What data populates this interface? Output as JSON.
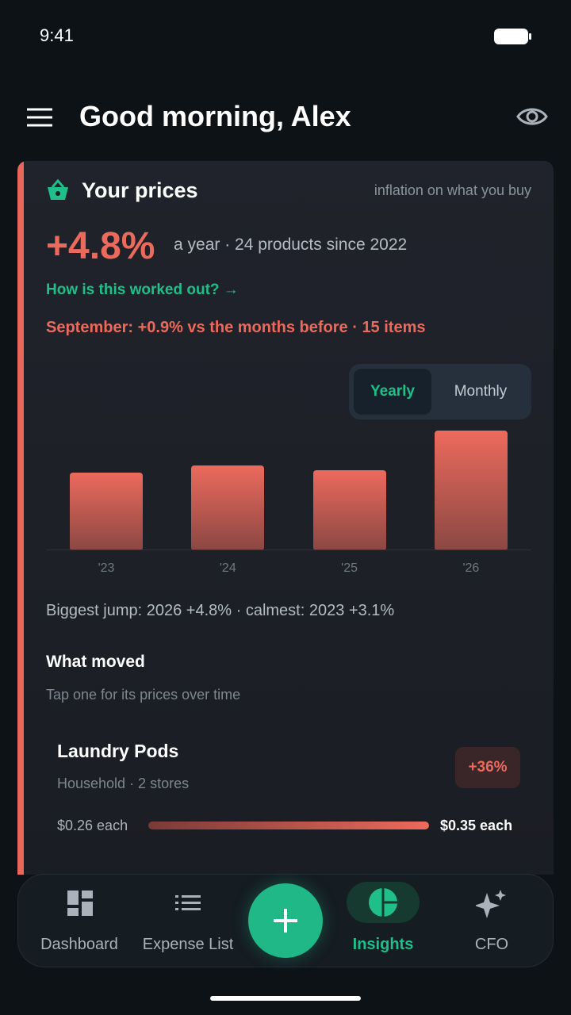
{
  "status_bar": {
    "time": "9:41"
  },
  "header": {
    "title": "Good morning, Alex"
  },
  "card": {
    "title": "Your prices",
    "note": "inflation on what you buy",
    "headline": "+4.8%",
    "headline_note": "a year · 24 products since 2022",
    "link": "How is this worked out? →",
    "alert": "September: +0.9% vs the months before · 15 items",
    "toggle": [
      "Yearly",
      "Monthly"
    ],
    "summary": "Biggest jump: 2026 +4.8% · calmest: 2023 +3.1%",
    "section_title": "What moved",
    "section_hint": "Tap one for its prices over time",
    "items": [
      {
        "name": "Laundry Pods",
        "meta": "Household · 2 stores",
        "change": "+36%",
        "from": "$0.26 each",
        "to": "$0.35 each"
      }
    ]
  },
  "chart_data": {
    "type": "bar",
    "categories": [
      "'23",
      "'24",
      "'25",
      "'26"
    ],
    "values": [
      3.1,
      3.4,
      3.2,
      4.8
    ],
    "color": "#ec6a5c"
  },
  "nav": [
    "Dashboard",
    "Expense List",
    "Insights",
    "CFO"
  ]
}
